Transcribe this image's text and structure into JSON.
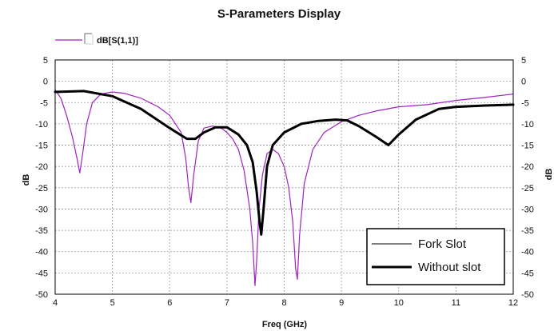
{
  "chart_data": {
    "type": "line",
    "title": "S-Parameters Display",
    "xlabel": "Freq (GHz)",
    "ylabel": "dB",
    "ylabel_right": "dB",
    "xlim": [
      4,
      12
    ],
    "ylim": [
      -50,
      5
    ],
    "x_ticks": [
      4,
      5,
      6,
      7,
      8,
      9,
      10,
      11,
      12
    ],
    "y_ticks": [
      5,
      0,
      -5,
      -10,
      -15,
      -20,
      -25,
      -30,
      -35,
      -40,
      -45,
      -50
    ],
    "grid": true,
    "top_legend_label": "dB[S(1,1)]",
    "legend_position": "bottom-right",
    "series": [
      {
        "name": "Fork Slot",
        "color": "#a020c0",
        "legend_color": "#000000",
        "linewidth": "thin",
        "x": [
          4.0,
          4.1,
          4.2,
          4.3,
          4.38,
          4.43,
          4.48,
          4.55,
          4.65,
          4.8,
          5.0,
          5.2,
          5.5,
          5.8,
          6.0,
          6.2,
          6.28,
          6.33,
          6.37,
          6.42,
          6.5,
          6.6,
          6.75,
          6.9,
          7.0,
          7.1,
          7.2,
          7.3,
          7.4,
          7.45,
          7.49,
          7.52,
          7.56,
          7.62,
          7.7,
          7.8,
          7.9,
          8.0,
          8.08,
          8.15,
          8.2,
          8.23,
          8.27,
          8.35,
          8.5,
          8.7,
          9.0,
          9.3,
          9.6,
          10.0,
          10.5,
          11.0,
          11.5,
          12.0
        ],
        "y": [
          -2,
          -4,
          -8,
          -13,
          -18,
          -21.5,
          -17,
          -10,
          -5,
          -3,
          -2.5,
          -2.8,
          -4,
          -6,
          -8,
          -12,
          -18,
          -25,
          -28.5,
          -22,
          -14,
          -11,
          -10.5,
          -11,
          -12,
          -13.5,
          -16,
          -21,
          -30,
          -38,
          -48,
          -42,
          -30,
          -22,
          -17,
          -16,
          -17,
          -20,
          -25,
          -33,
          -44,
          -46.5,
          -36,
          -24,
          -16,
          -12,
          -9.5,
          -8,
          -7,
          -6,
          -5.5,
          -4.5,
          -3.8,
          -3
        ]
      },
      {
        "name": "Without slot",
        "color": "#000000",
        "legend_color": "#000000",
        "linewidth": "thick",
        "x": [
          4.0,
          4.5,
          5.0,
          5.5,
          6.0,
          6.3,
          6.45,
          6.6,
          6.8,
          7.0,
          7.2,
          7.35,
          7.45,
          7.52,
          7.57,
          7.6,
          7.64,
          7.7,
          7.8,
          8.0,
          8.3,
          8.6,
          8.9,
          9.1,
          9.3,
          9.6,
          9.82,
          10.0,
          10.3,
          10.7,
          11.0,
          11.5,
          12.0
        ],
        "y": [
          -2.5,
          -2.3,
          -3.5,
          -6.5,
          -11,
          -13.5,
          -13.5,
          -12,
          -10.8,
          -10.8,
          -12.5,
          -15,
          -19,
          -26,
          -33,
          -36,
          -30,
          -20,
          -15,
          -12,
          -10,
          -9.3,
          -9,
          -9.2,
          -10.5,
          -13,
          -15,
          -12.5,
          -9,
          -6.5,
          -6,
          -5.7,
          -5.5
        ]
      }
    ]
  }
}
